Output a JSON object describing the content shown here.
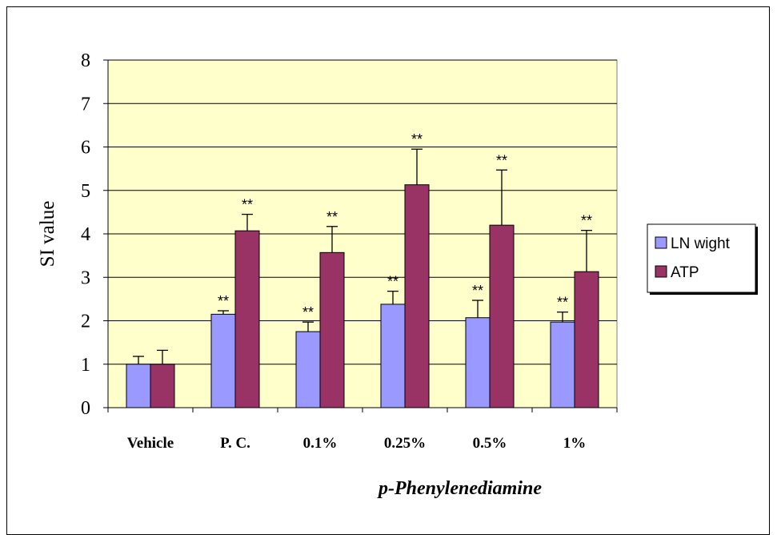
{
  "chart_data": {
    "type": "bar",
    "title": "",
    "xlabel": "p-Phenylenediamine",
    "ylabel": "SI value",
    "ylim": [
      0,
      8
    ],
    "yticks": [
      0,
      1,
      2,
      3,
      4,
      5,
      6,
      7,
      8
    ],
    "grid": true,
    "legend_position": "right",
    "plot_background": "#FFFFCC",
    "categories": [
      "Vehicle",
      "P. C.",
      "0.1%",
      "0.25%",
      "0.5%",
      "1%"
    ],
    "series": [
      {
        "name": "LN wight",
        "color": "#9999FF",
        "values": [
          1.0,
          2.15,
          1.75,
          2.38,
          2.07,
          1.97
        ],
        "errors": [
          0.18,
          0.08,
          0.22,
          0.3,
          0.4,
          0.23
        ],
        "annotations": [
          "",
          "**",
          "**",
          "**",
          "**",
          "**"
        ]
      },
      {
        "name": "ATP",
        "color": "#993366",
        "values": [
          1.0,
          4.07,
          3.57,
          5.13,
          4.2,
          3.13
        ],
        "errors": [
          0.32,
          0.38,
          0.6,
          0.82,
          1.27,
          0.95
        ],
        "annotations": [
          "",
          "**",
          "**",
          "**",
          "**",
          "**"
        ]
      }
    ]
  }
}
